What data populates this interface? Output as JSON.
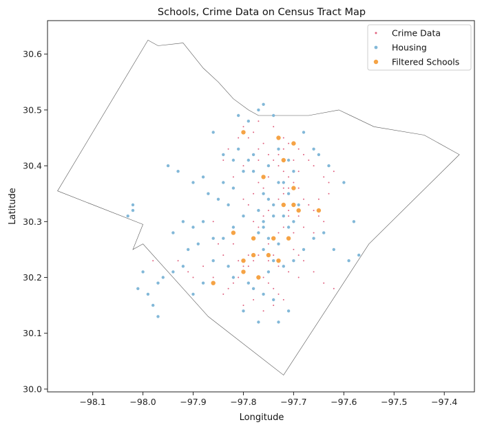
{
  "chart_data": {
    "type": "scatter",
    "title": "Schools, Crime Data on Census Tract Map",
    "xlabel": "Longitude",
    "ylabel": "Latitude",
    "xlim": [
      -98.19,
      -97.34
    ],
    "ylim": [
      29.995,
      30.66
    ],
    "xticks": [
      -98.2,
      -98.1,
      -98.0,
      -97.9,
      -97.8,
      -97.7,
      -97.6,
      -97.5,
      -97.4
    ],
    "xtick_labels": [
      "−98.2",
      "−98.1",
      "−98.0",
      "−97.9",
      "−97.8",
      "−97.7",
      "−97.6",
      "−97.5",
      "−97.4"
    ],
    "yticks": [
      30.0,
      30.1,
      30.2,
      30.3,
      30.4,
      30.5,
      30.6
    ],
    "ytick_labels": [
      "30.0",
      "30.1",
      "30.2",
      "30.3",
      "30.4",
      "30.5",
      "30.6"
    ],
    "grid": false,
    "legend_position": "top-right",
    "county_boundary": [
      [
        -98.17,
        30.355
      ],
      [
        -97.99,
        30.625
      ],
      [
        -97.97,
        30.615
      ],
      [
        -97.92,
        30.62
      ],
      [
        -97.88,
        30.575
      ],
      [
        -97.85,
        30.55
      ],
      [
        -97.82,
        30.52
      ],
      [
        -97.79,
        30.5
      ],
      [
        -97.77,
        30.49
      ],
      [
        -97.73,
        30.49
      ],
      [
        -97.67,
        30.49
      ],
      [
        -97.61,
        30.5
      ],
      [
        -97.54,
        30.47
      ],
      [
        -97.44,
        30.455
      ],
      [
        -97.37,
        30.42
      ],
      [
        -97.55,
        30.26
      ],
      [
        -97.72,
        30.025
      ],
      [
        -97.87,
        30.13
      ],
      [
        -98.0,
        30.26
      ],
      [
        -98.02,
        30.25
      ],
      [
        -98.0,
        30.295
      ],
      [
        -98.17,
        30.355
      ]
    ],
    "series": [
      {
        "name": "Crime Data",
        "color": "#e0607e",
        "points": [
          [
            -97.78,
            30.46
          ],
          [
            -97.79,
            30.45
          ],
          [
            -97.76,
            30.44
          ],
          [
            -97.77,
            30.43
          ],
          [
            -97.75,
            30.42
          ],
          [
            -97.74,
            30.41
          ],
          [
            -97.73,
            30.4
          ],
          [
            -97.72,
            30.39
          ],
          [
            -97.71,
            30.38
          ],
          [
            -97.7,
            30.37
          ],
          [
            -97.69,
            30.36
          ],
          [
            -97.72,
            30.35
          ],
          [
            -97.73,
            30.34
          ],
          [
            -97.74,
            30.33
          ],
          [
            -97.75,
            30.32
          ],
          [
            -97.71,
            30.31
          ],
          [
            -97.7,
            30.3
          ],
          [
            -97.72,
            30.29
          ],
          [
            -97.73,
            30.28
          ],
          [
            -97.74,
            30.27
          ],
          [
            -97.75,
            30.26
          ],
          [
            -97.76,
            30.25
          ],
          [
            -97.77,
            30.24
          ],
          [
            -97.78,
            30.23
          ],
          [
            -97.79,
            30.22
          ],
          [
            -97.8,
            30.21
          ],
          [
            -97.81,
            30.2
          ],
          [
            -97.82,
            30.19
          ],
          [
            -97.83,
            30.18
          ],
          [
            -97.76,
            30.2
          ],
          [
            -97.75,
            30.19
          ],
          [
            -97.74,
            30.18
          ],
          [
            -97.73,
            30.17
          ],
          [
            -97.72,
            30.16
          ],
          [
            -97.68,
            30.34
          ],
          [
            -97.67,
            30.33
          ],
          [
            -97.66,
            30.32
          ],
          [
            -97.65,
            30.31
          ],
          [
            -97.64,
            30.3
          ],
          [
            -97.69,
            30.43
          ],
          [
            -97.68,
            30.42
          ],
          [
            -97.67,
            30.41
          ],
          [
            -97.66,
            30.4
          ],
          [
            -97.62,
            30.18
          ],
          [
            -97.63,
            30.35
          ],
          [
            -97.64,
            30.38
          ],
          [
            -97.82,
            30.38
          ],
          [
            -97.8,
            30.4
          ],
          [
            -97.84,
            30.41
          ],
          [
            -97.86,
            30.3
          ],
          [
            -97.88,
            30.22
          ],
          [
            -97.86,
            30.2
          ],
          [
            -97.84,
            30.17
          ],
          [
            -97.7,
            30.25
          ],
          [
            -97.69,
            30.24
          ],
          [
            -97.68,
            30.23
          ],
          [
            -97.71,
            30.44
          ],
          [
            -97.72,
            30.45
          ],
          [
            -97.74,
            30.47
          ],
          [
            -97.77,
            30.48
          ],
          [
            -97.8,
            30.47
          ],
          [
            -97.81,
            30.45
          ],
          [
            -97.83,
            30.43
          ],
          [
            -97.78,
            30.3
          ],
          [
            -97.77,
            30.29
          ],
          [
            -97.76,
            30.31
          ],
          [
            -97.79,
            30.33
          ],
          [
            -97.8,
            30.34
          ],
          [
            -97.82,
            30.26
          ],
          [
            -97.84,
            30.24
          ],
          [
            -97.85,
            30.26
          ],
          [
            -97.9,
            30.2
          ],
          [
            -97.91,
            30.21
          ],
          [
            -97.73,
            30.22
          ],
          [
            -97.71,
            30.21
          ],
          [
            -97.69,
            30.2
          ],
          [
            -97.66,
            30.21
          ],
          [
            -97.64,
            30.19
          ],
          [
            -97.98,
            30.23
          ],
          [
            -97.93,
            30.23
          ],
          [
            -97.76,
            30.36
          ],
          [
            -97.77,
            30.37
          ],
          [
            -97.78,
            30.35
          ],
          [
            -97.7,
            30.33
          ],
          [
            -97.71,
            30.32
          ],
          [
            -97.69,
            30.31
          ],
          [
            -97.72,
            30.36
          ],
          [
            -97.75,
            30.38
          ],
          [
            -97.77,
            30.41
          ],
          [
            -97.8,
            30.22
          ],
          [
            -97.81,
            30.23
          ],
          [
            -97.79,
            30.24
          ],
          [
            -97.75,
            30.23
          ],
          [
            -97.74,
            30.24
          ],
          [
            -97.73,
            30.26
          ],
          [
            -97.71,
            30.27
          ],
          [
            -97.7,
            30.28
          ],
          [
            -97.68,
            30.29
          ],
          [
            -97.66,
            30.28
          ],
          [
            -97.65,
            30.34
          ],
          [
            -97.63,
            30.37
          ],
          [
            -97.62,
            30.39
          ],
          [
            -97.74,
            30.15
          ],
          [
            -97.76,
            30.14
          ],
          [
            -97.78,
            30.16
          ],
          [
            -97.8,
            30.15
          ],
          [
            -97.72,
            30.43
          ],
          [
            -97.73,
            30.42
          ],
          [
            -97.7,
            30.41
          ],
          [
            -97.69,
            30.39
          ],
          [
            -97.71,
            30.36
          ]
        ]
      },
      {
        "name": "Housing",
        "color": "#82b8d8",
        "points": [
          [
            -97.76,
            30.51
          ],
          [
            -97.74,
            30.49
          ],
          [
            -97.77,
            30.5
          ],
          [
            -97.79,
            30.48
          ],
          [
            -97.81,
            30.49
          ],
          [
            -97.86,
            30.46
          ],
          [
            -97.78,
            30.42
          ],
          [
            -97.75,
            30.4
          ],
          [
            -97.73,
            30.37
          ],
          [
            -97.76,
            30.35
          ],
          [
            -97.74,
            30.33
          ],
          [
            -97.76,
            30.3
          ],
          [
            -97.77,
            30.28
          ],
          [
            -97.75,
            30.27
          ],
          [
            -97.73,
            30.26
          ],
          [
            -97.76,
            30.25
          ],
          [
            -97.78,
            30.24
          ],
          [
            -97.74,
            30.23
          ],
          [
            -97.75,
            30.21
          ],
          [
            -97.77,
            30.2
          ],
          [
            -97.79,
            30.19
          ],
          [
            -97.78,
            30.18
          ],
          [
            -97.76,
            30.17
          ],
          [
            -97.74,
            30.16
          ],
          [
            -97.8,
            30.14
          ],
          [
            -97.77,
            30.12
          ],
          [
            -97.73,
            30.12
          ],
          [
            -97.71,
            30.14
          ],
          [
            -97.7,
            30.3
          ],
          [
            -97.69,
            30.33
          ],
          [
            -97.71,
            30.35
          ],
          [
            -97.72,
            30.37
          ],
          [
            -97.7,
            30.39
          ],
          [
            -97.71,
            30.41
          ],
          [
            -97.73,
            30.43
          ],
          [
            -97.7,
            30.44
          ],
          [
            -97.68,
            30.46
          ],
          [
            -97.66,
            30.43
          ],
          [
            -97.65,
            30.42
          ],
          [
            -97.63,
            30.4
          ],
          [
            -97.6,
            30.37
          ],
          [
            -97.58,
            30.3
          ],
          [
            -97.57,
            30.24
          ],
          [
            -97.59,
            30.23
          ],
          [
            -97.62,
            30.25
          ],
          [
            -97.95,
            30.4
          ],
          [
            -97.93,
            30.39
          ],
          [
            -97.9,
            30.37
          ],
          [
            -97.88,
            30.38
          ],
          [
            -97.87,
            30.35
          ],
          [
            -97.85,
            30.34
          ],
          [
            -97.83,
            30.33
          ],
          [
            -97.88,
            30.3
          ],
          [
            -97.9,
            30.29
          ],
          [
            -97.92,
            30.3
          ],
          [
            -97.94,
            30.28
          ],
          [
            -97.86,
            30.27
          ],
          [
            -97.89,
            30.26
          ],
          [
            -97.91,
            30.25
          ],
          [
            -97.92,
            30.22
          ],
          [
            -97.94,
            30.21
          ],
          [
            -97.96,
            30.2
          ],
          [
            -97.97,
            30.19
          ],
          [
            -97.99,
            30.17
          ],
          [
            -97.98,
            30.15
          ],
          [
            -97.97,
            30.13
          ],
          [
            -98.0,
            30.21
          ],
          [
            -98.01,
            30.18
          ],
          [
            -98.02,
            30.32
          ],
          [
            -98.03,
            30.31
          ],
          [
            -98.02,
            30.33
          ],
          [
            -97.82,
            30.36
          ],
          [
            -97.84,
            30.37
          ],
          [
            -97.8,
            30.39
          ],
          [
            -97.82,
            30.41
          ],
          [
            -97.84,
            30.42
          ],
          [
            -97.81,
            30.43
          ],
          [
            -97.79,
            30.41
          ],
          [
            -97.78,
            30.39
          ],
          [
            -97.8,
            30.31
          ],
          [
            -97.82,
            30.29
          ],
          [
            -97.84,
            30.27
          ],
          [
            -97.86,
            30.23
          ],
          [
            -97.88,
            30.19
          ],
          [
            -97.9,
            30.17
          ],
          [
            -97.82,
            30.2
          ],
          [
            -97.83,
            30.22
          ],
          [
            -97.72,
            30.22
          ],
          [
            -97.7,
            30.23
          ],
          [
            -97.68,
            30.25
          ],
          [
            -97.66,
            30.27
          ],
          [
            -97.64,
            30.28
          ],
          [
            -97.75,
            30.34
          ],
          [
            -97.77,
            30.32
          ],
          [
            -97.74,
            30.31
          ],
          [
            -97.76,
            30.29
          ],
          [
            -97.78,
            30.27
          ],
          [
            -97.72,
            30.31
          ],
          [
            -97.71,
            30.29
          ]
        ]
      },
      {
        "name": "Filtered Schools",
        "color": "#f5a345",
        "points": [
          [
            -97.8,
            30.46
          ],
          [
            -97.73,
            30.45
          ],
          [
            -97.7,
            30.44
          ],
          [
            -97.72,
            30.41
          ],
          [
            -97.76,
            30.38
          ],
          [
            -97.7,
            30.36
          ],
          [
            -97.72,
            30.33
          ],
          [
            -97.7,
            30.33
          ],
          [
            -97.69,
            30.32
          ],
          [
            -97.65,
            30.32
          ],
          [
            -97.82,
            30.28
          ],
          [
            -97.78,
            30.27
          ],
          [
            -97.74,
            30.27
          ],
          [
            -97.71,
            30.27
          ],
          [
            -97.78,
            30.24
          ],
          [
            -97.75,
            30.24
          ],
          [
            -97.8,
            30.23
          ],
          [
            -97.73,
            30.23
          ],
          [
            -97.8,
            30.21
          ],
          [
            -97.77,
            30.2
          ],
          [
            -97.86,
            30.19
          ]
        ]
      }
    ]
  }
}
